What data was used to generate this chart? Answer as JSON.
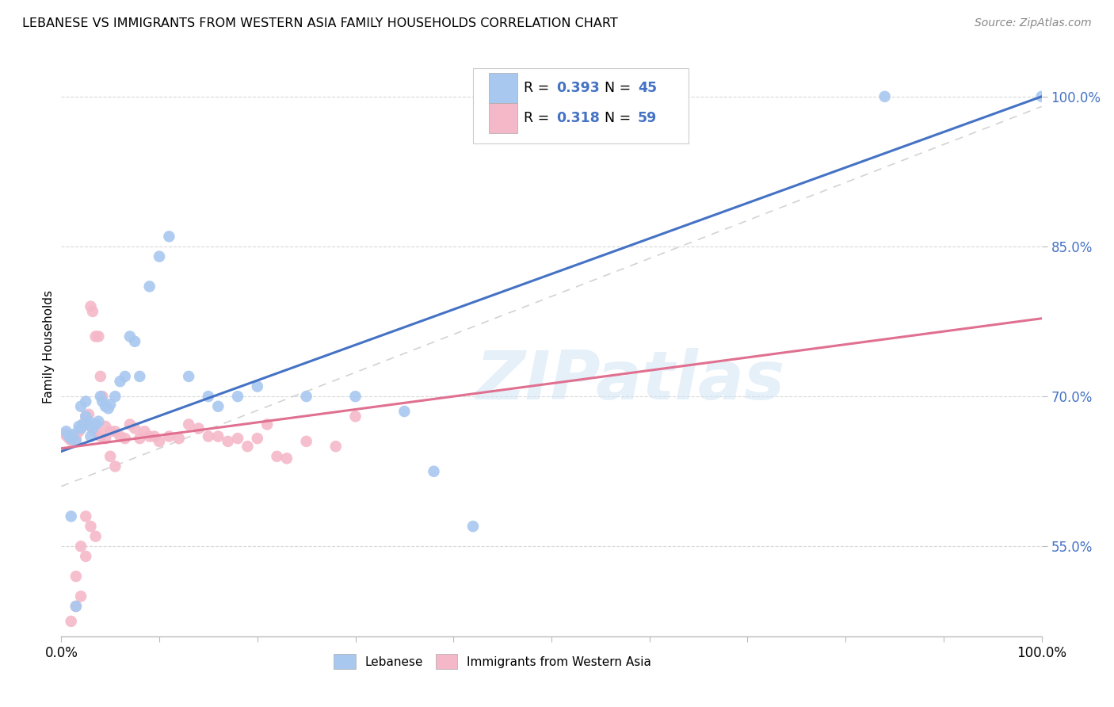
{
  "title": "LEBANESE VS IMMIGRANTS FROM WESTERN ASIA FAMILY HOUSEHOLDS CORRELATION CHART",
  "source": "Source: ZipAtlas.com",
  "ylabel": "Family Households",
  "xlim": [
    0.0,
    1.0
  ],
  "ylim": [
    0.46,
    1.04
  ],
  "yticks": [
    0.55,
    0.7,
    0.85,
    1.0
  ],
  "ytick_labels": [
    "55.0%",
    "70.0%",
    "85.0%",
    "100.0%"
  ],
  "blue_R": "0.393",
  "blue_N": "45",
  "pink_R": "0.318",
  "pink_N": "59",
  "blue_dot_color": "#A8C8F0",
  "pink_dot_color": "#F5B8C8",
  "blue_line_color": "#4472C4",
  "pink_line_color": "#E07090",
  "ref_line_color": "#C0C0C0",
  "legend_label_blue": "Lebanese",
  "legend_label_pink": "Immigrants from Western Asia",
  "watermark": "ZIPatlas",
  "background_color": "#FFFFFF",
  "blue_line_intercept": 0.645,
  "blue_line_slope": 0.355,
  "pink_line_intercept": 0.648,
  "pink_line_slope": 0.13,
  "blue_x": [
    0.005,
    0.008,
    0.01,
    0.012,
    0.015,
    0.018,
    0.02,
    0.022,
    0.025,
    0.028,
    0.03,
    0.032,
    0.035,
    0.038,
    0.04,
    0.042,
    0.045,
    0.048,
    0.05,
    0.055,
    0.06,
    0.065,
    0.07,
    0.075,
    0.08,
    0.09,
    0.1,
    0.11,
    0.13,
    0.15,
    0.16,
    0.18,
    0.2,
    0.25,
    0.3,
    0.35,
    0.38,
    0.42,
    0.01,
    0.015,
    0.02,
    0.025,
    0.03,
    0.84,
    1.0
  ],
  "blue_y": [
    0.665,
    0.66,
    0.658,
    0.662,
    0.655,
    0.67,
    0.668,
    0.672,
    0.68,
    0.675,
    0.67,
    0.668,
    0.672,
    0.675,
    0.7,
    0.695,
    0.69,
    0.688,
    0.692,
    0.7,
    0.715,
    0.72,
    0.76,
    0.755,
    0.72,
    0.81,
    0.84,
    0.86,
    0.72,
    0.7,
    0.69,
    0.7,
    0.71,
    0.7,
    0.7,
    0.685,
    0.625,
    0.57,
    0.58,
    0.49,
    0.69,
    0.695,
    0.66,
    1.0,
    1.0
  ],
  "pink_x": [
    0.004,
    0.006,
    0.008,
    0.01,
    0.012,
    0.015,
    0.018,
    0.02,
    0.022,
    0.025,
    0.028,
    0.03,
    0.032,
    0.035,
    0.038,
    0.04,
    0.042,
    0.045,
    0.05,
    0.055,
    0.06,
    0.065,
    0.07,
    0.075,
    0.08,
    0.085,
    0.09,
    0.095,
    0.1,
    0.11,
    0.12,
    0.13,
    0.14,
    0.15,
    0.16,
    0.17,
    0.18,
    0.19,
    0.2,
    0.21,
    0.22,
    0.23,
    0.25,
    0.28,
    0.3,
    0.035,
    0.04,
    0.045,
    0.05,
    0.055,
    0.015,
    0.02,
    0.025,
    0.03,
    0.035,
    0.01,
    0.015,
    0.02,
    0.025
  ],
  "pink_y": [
    0.662,
    0.66,
    0.658,
    0.656,
    0.66,
    0.658,
    0.665,
    0.668,
    0.672,
    0.68,
    0.682,
    0.79,
    0.785,
    0.76,
    0.76,
    0.72,
    0.7,
    0.67,
    0.665,
    0.665,
    0.66,
    0.658,
    0.672,
    0.668,
    0.658,
    0.665,
    0.66,
    0.66,
    0.655,
    0.66,
    0.658,
    0.672,
    0.668,
    0.66,
    0.66,
    0.655,
    0.658,
    0.65,
    0.658,
    0.672,
    0.64,
    0.638,
    0.655,
    0.65,
    0.68,
    0.665,
    0.66,
    0.658,
    0.64,
    0.63,
    0.52,
    0.5,
    0.58,
    0.57,
    0.56,
    0.475,
    0.49,
    0.55,
    0.54
  ]
}
